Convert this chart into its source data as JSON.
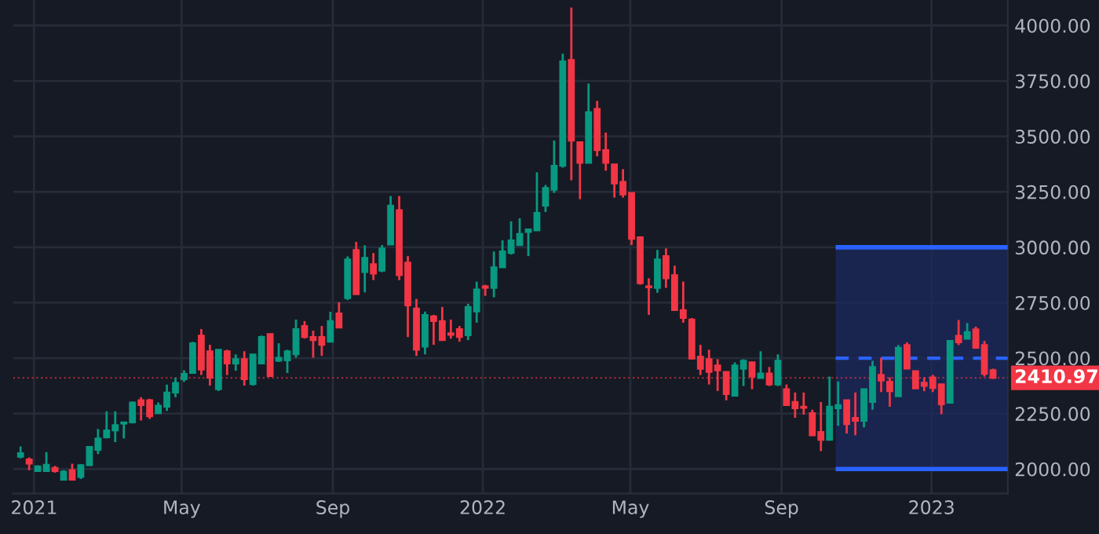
{
  "chart_data": {
    "type": "candlestick",
    "x": [
      "2020-12-21",
      "2020-12-28",
      "2021-01-04",
      "2021-01-11",
      "2021-01-18",
      "2021-01-25",
      "2021-02-01",
      "2021-02-08",
      "2021-02-15",
      "2021-02-22",
      "2021-03-01",
      "2021-03-08",
      "2021-03-15",
      "2021-03-22",
      "2021-03-29",
      "2021-04-05",
      "2021-04-12",
      "2021-04-19",
      "2021-04-26",
      "2021-05-03",
      "2021-05-10",
      "2021-05-17",
      "2021-05-24",
      "2021-05-31",
      "2021-06-07",
      "2021-06-14",
      "2021-06-21",
      "2021-06-28",
      "2021-07-05",
      "2021-07-12",
      "2021-07-19",
      "2021-07-26",
      "2021-08-02",
      "2021-08-09",
      "2021-08-16",
      "2021-08-23",
      "2021-08-30",
      "2021-09-06",
      "2021-09-13",
      "2021-09-20",
      "2021-09-27",
      "2021-10-04",
      "2021-10-11",
      "2021-10-18",
      "2021-10-25",
      "2021-11-01",
      "2021-11-08",
      "2021-11-15",
      "2021-11-22",
      "2021-11-29",
      "2021-12-06",
      "2021-12-13",
      "2021-12-20",
      "2021-12-27",
      "2022-01-03",
      "2022-01-10",
      "2022-01-17",
      "2022-01-24",
      "2022-01-31",
      "2022-02-07",
      "2022-02-14",
      "2022-02-21",
      "2022-02-28",
      "2022-03-07",
      "2022-03-14",
      "2022-03-21",
      "2022-03-28",
      "2022-04-04",
      "2022-04-11",
      "2022-04-18",
      "2022-04-25",
      "2022-05-02",
      "2022-05-09",
      "2022-05-16",
      "2022-05-23",
      "2022-05-30",
      "2022-06-06",
      "2022-06-13",
      "2022-06-20",
      "2022-06-27",
      "2022-07-04",
      "2022-07-11",
      "2022-07-18",
      "2022-07-25",
      "2022-08-01",
      "2022-08-08",
      "2022-08-15",
      "2022-08-22",
      "2022-08-29",
      "2022-09-05",
      "2022-09-12",
      "2022-09-19",
      "2022-09-26",
      "2022-10-03",
      "2022-10-10",
      "2022-10-17",
      "2022-10-24",
      "2022-10-31",
      "2022-11-07",
      "2022-11-14",
      "2022-11-21",
      "2022-11-28",
      "2022-12-05",
      "2022-12-12",
      "2022-12-19",
      "2022-12-26",
      "2023-01-02",
      "2023-01-09",
      "2023-01-16",
      "2023-01-23",
      "2023-01-30",
      "2023-02-06",
      "2023-02-13",
      "2023-02-20"
    ],
    "ohlc": [
      [
        2055,
        2102,
        2048,
        2071
      ],
      [
        2043,
        2052,
        1995,
        2024
      ],
      [
        1991,
        2017,
        1991,
        2012
      ],
      [
        1991,
        2076,
        1991,
        2019
      ],
      [
        2005,
        2014,
        1983,
        1991
      ],
      [
        1952,
        1995,
        1952,
        1988
      ],
      [
        1995,
        2024,
        1952,
        1952
      ],
      [
        1964,
        2021,
        1955,
        2017
      ],
      [
        2017,
        2100,
        2017,
        2100
      ],
      [
        2086,
        2181,
        2067,
        2138
      ],
      [
        2143,
        2260,
        2138,
        2174
      ],
      [
        2174,
        2260,
        2121,
        2198
      ],
      [
        2205,
        2210,
        2138,
        2210
      ],
      [
        2210,
        2305,
        2205,
        2300
      ],
      [
        2310,
        2324,
        2219,
        2288
      ],
      [
        2310,
        2317,
        2226,
        2238
      ],
      [
        2252,
        2300,
        2252,
        2286
      ],
      [
        2281,
        2381,
        2262,
        2345
      ],
      [
        2345,
        2412,
        2324,
        2388
      ],
      [
        2405,
        2445,
        2393,
        2429
      ],
      [
        2433,
        2574,
        2433,
        2567
      ],
      [
        2602,
        2631,
        2424,
        2448
      ],
      [
        2531,
        2560,
        2376,
        2412
      ],
      [
        2360,
        2538,
        2352,
        2538
      ],
      [
        2531,
        2538,
        2424,
        2476
      ],
      [
        2476,
        2517,
        2443,
        2495
      ],
      [
        2495,
        2531,
        2376,
        2405
      ],
      [
        2383,
        2517,
        2376,
        2517
      ],
      [
        2476,
        2602,
        2476,
        2595
      ],
      [
        2609,
        2609,
        2419,
        2419
      ],
      [
        2488,
        2567,
        2483,
        2502
      ],
      [
        2490,
        2538,
        2433,
        2531
      ],
      [
        2517,
        2674,
        2502,
        2631
      ],
      [
        2645,
        2667,
        2588,
        2595
      ],
      [
        2595,
        2624,
        2502,
        2581
      ],
      [
        2595,
        2645,
        2510,
        2560
      ],
      [
        2574,
        2709,
        2574,
        2667
      ],
      [
        2702,
        2752,
        2638,
        2638
      ],
      [
        2771,
        2959,
        2762,
        2945
      ],
      [
        2988,
        3024,
        2788,
        2788
      ],
      [
        2888,
        3009,
        2797,
        2952
      ],
      [
        2924,
        2974,
        2852,
        2881
      ],
      [
        2895,
        3010,
        2888,
        2995
      ],
      [
        3012,
        3231,
        3012,
        3188
      ],
      [
        3167,
        3231,
        2852,
        2874
      ],
      [
        2931,
        2960,
        2595,
        2738
      ],
      [
        2724,
        2767,
        2510,
        2538
      ],
      [
        2552,
        2710,
        2517,
        2695
      ],
      [
        2688,
        2695,
        2560,
        2667
      ],
      [
        2667,
        2731,
        2581,
        2581
      ],
      [
        2612,
        2674,
        2588,
        2605
      ],
      [
        2631,
        2645,
        2574,
        2595
      ],
      [
        2603,
        2745,
        2581,
        2731
      ],
      [
        2710,
        2845,
        2660,
        2810
      ],
      [
        2824,
        2831,
        2781,
        2817
      ],
      [
        2817,
        2981,
        2774,
        2910
      ],
      [
        2910,
        3031,
        2910,
        2981
      ],
      [
        2974,
        3117,
        2967,
        3031
      ],
      [
        3010,
        3131,
        3010,
        3060
      ],
      [
        3069,
        3081,
        2960,
        3081
      ],
      [
        3076,
        3338,
        3076,
        3155
      ],
      [
        3188,
        3281,
        3159,
        3267
      ],
      [
        3259,
        3481,
        3245,
        3367
      ],
      [
        3367,
        3873,
        3359,
        3838
      ],
      [
        3845,
        4081,
        3302,
        3481
      ],
      [
        3474,
        3474,
        3217,
        3381
      ],
      [
        3381,
        3738,
        3381,
        3609
      ],
      [
        3624,
        3660,
        3410,
        3438
      ],
      [
        3438,
        3517,
        3345,
        3381
      ],
      [
        3374,
        3374,
        3224,
        3288
      ],
      [
        3295,
        3352,
        3224,
        3238
      ],
      [
        3245,
        3245,
        3010,
        3038
      ],
      [
        3045,
        3045,
        2831,
        2838
      ],
      [
        2824,
        2860,
        2695,
        2819
      ],
      [
        2817,
        2988,
        2795,
        2945
      ],
      [
        2960,
        2995,
        2817,
        2860
      ],
      [
        2874,
        2917,
        2717,
        2717
      ],
      [
        2717,
        2845,
        2660,
        2681
      ],
      [
        2674,
        2681,
        2495,
        2498
      ],
      [
        2507,
        2560,
        2424,
        2452
      ],
      [
        2495,
        2538,
        2381,
        2438
      ],
      [
        2467,
        2495,
        2352,
        2445
      ],
      [
        2438,
        2438,
        2310,
        2338
      ],
      [
        2331,
        2481,
        2331,
        2467
      ],
      [
        2452,
        2495,
        2374,
        2488
      ],
      [
        2481,
        2481,
        2360,
        2417
      ],
      [
        2410,
        2531,
        2410,
        2431
      ],
      [
        2431,
        2460,
        2374,
        2381
      ],
      [
        2381,
        2517,
        2374,
        2488
      ],
      [
        2360,
        2381,
        2288,
        2288
      ],
      [
        2302,
        2345,
        2231,
        2274
      ],
      [
        2281,
        2345,
        2245,
        2276
      ],
      [
        2252,
        2267,
        2152,
        2152
      ],
      [
        2167,
        2302,
        2081,
        2131
      ],
      [
        2131,
        2417,
        2131,
        2281
      ],
      [
        2274,
        2395,
        2195,
        2288
      ],
      [
        2310,
        2310,
        2160,
        2202
      ],
      [
        2231,
        2345,
        2152,
        2217
      ],
      [
        2217,
        2360,
        2188,
        2360
      ],
      [
        2302,
        2488,
        2267,
        2460
      ],
      [
        2425,
        2502,
        2347,
        2399
      ],
      [
        2394,
        2413,
        2281,
        2351
      ],
      [
        2328,
        2559,
        2328,
        2547
      ],
      [
        2559,
        2571,
        2453,
        2453
      ],
      [
        2441,
        2441,
        2363,
        2363
      ],
      [
        2389,
        2413,
        2351,
        2375
      ],
      [
        2413,
        2425,
        2347,
        2365
      ],
      [
        2382,
        2382,
        2247,
        2292
      ],
      [
        2299,
        2578,
        2299,
        2578
      ],
      [
        2601,
        2672,
        2559,
        2571
      ],
      [
        2587,
        2658,
        2587,
        2618
      ],
      [
        2630,
        2642,
        2547,
        2547
      ],
      [
        2559,
        2578,
        2417,
        2429
      ],
      [
        2446,
        2453,
        2406,
        2410.97
      ]
    ],
    "colors": [
      "#089981",
      "#f23645",
      "#089981",
      "#089981",
      "#f23645",
      "#089981",
      "#f23645",
      "#089981",
      "#089981",
      "#089981",
      "#089981",
      "#089981",
      "#089981",
      "#089981",
      "#f23645",
      "#f23645",
      "#089981",
      "#089981",
      "#089981",
      "#089981",
      "#089981",
      "#f23645",
      "#f23645",
      "#089981",
      "#f23645",
      "#089981",
      "#f23645",
      "#089981",
      "#089981",
      "#f23645",
      "#089981",
      "#089981",
      "#089981",
      "#f23645",
      "#f23645",
      "#f23645",
      "#089981",
      "#f23645",
      "#089981",
      "#f23645",
      "#089981",
      "#f23645",
      "#089981",
      "#089981",
      "#f23645",
      "#f23645",
      "#f23645",
      "#089981",
      "#f23645",
      "#f23645",
      "#f23645",
      "#f23645",
      "#089981",
      "#089981",
      "#f23645",
      "#089981",
      "#089981",
      "#089981",
      "#089981",
      "#089981",
      "#089981",
      "#089981",
      "#089981",
      "#089981",
      "#f23645",
      "#f23645",
      "#089981",
      "#f23645",
      "#f23645",
      "#f23645",
      "#f23645",
      "#f23645",
      "#f23645",
      "#f23645",
      "#089981",
      "#f23645",
      "#f23645",
      "#f23645",
      "#f23645",
      "#f23645",
      "#f23645",
      "#f23645",
      "#f23645",
      "#089981",
      "#089981",
      "#f23645",
      "#089981",
      "#f23645",
      "#089981",
      "#f23645",
      "#f23645",
      "#f23645",
      "#f23645",
      "#f23645",
      "#089981",
      "#089981",
      "#f23645",
      "#f23645",
      "#089981",
      "#089981",
      "#f23645",
      "#f23645",
      "#089981",
      "#f23645",
      "#f23645",
      "#f23645",
      "#f23645",
      "#f23645",
      "#089981",
      "#f23645",
      "#089981",
      "#f23645",
      "#f23645",
      "#f23645"
    ],
    "xlim": [
      "2020-12-15",
      "2023-03-04"
    ],
    "xticks": [
      {
        "value": "2021-01-01",
        "label": "2021"
      },
      {
        "value": "2021-05-01",
        "label": "May"
      },
      {
        "value": "2021-09-01",
        "label": "Sep"
      },
      {
        "value": "2022-01-01",
        "label": "2022"
      },
      {
        "value": "2022-05-01",
        "label": "May"
      },
      {
        "value": "2022-09-01",
        "label": "Sep"
      },
      {
        "value": "2023-01-01",
        "label": "2023"
      }
    ],
    "ylim": [
      1890,
      4115
    ],
    "yticks": [
      {
        "value": 2000,
        "label": "2000.00"
      },
      {
        "value": 2250,
        "label": "2250.00"
      },
      {
        "value": 2500,
        "label": "2500.00"
      },
      {
        "value": 2750,
        "label": "2750.00"
      },
      {
        "value": 3000,
        "label": "3000.00"
      },
      {
        "value": 3250,
        "label": "3250.00"
      },
      {
        "value": 3500,
        "label": "3500.00"
      },
      {
        "value": 3750,
        "label": "3750.00"
      },
      {
        "value": 4000,
        "label": "4000.00"
      }
    ],
    "grid": true,
    "bands": [
      {
        "axis": "x",
        "from": "2022-10-15",
        "to": "2023-03-04",
        "color": "#1c2a5e"
      }
    ],
    "ref_lines": [
      {
        "axis": "y",
        "value": 3000,
        "color": "#2962ff",
        "line_style": "solid"
      },
      {
        "axis": "y",
        "value": 2000,
        "color": "#2962ff",
        "line_style": "solid"
      },
      {
        "axis": "y",
        "value": 2500,
        "color": "#2962ff",
        "line_style": "dashed"
      },
      {
        "axis": "y",
        "value": 2410.97,
        "label": "2410.97",
        "color": "#f23645",
        "line_style": "dotted"
      }
    ]
  }
}
